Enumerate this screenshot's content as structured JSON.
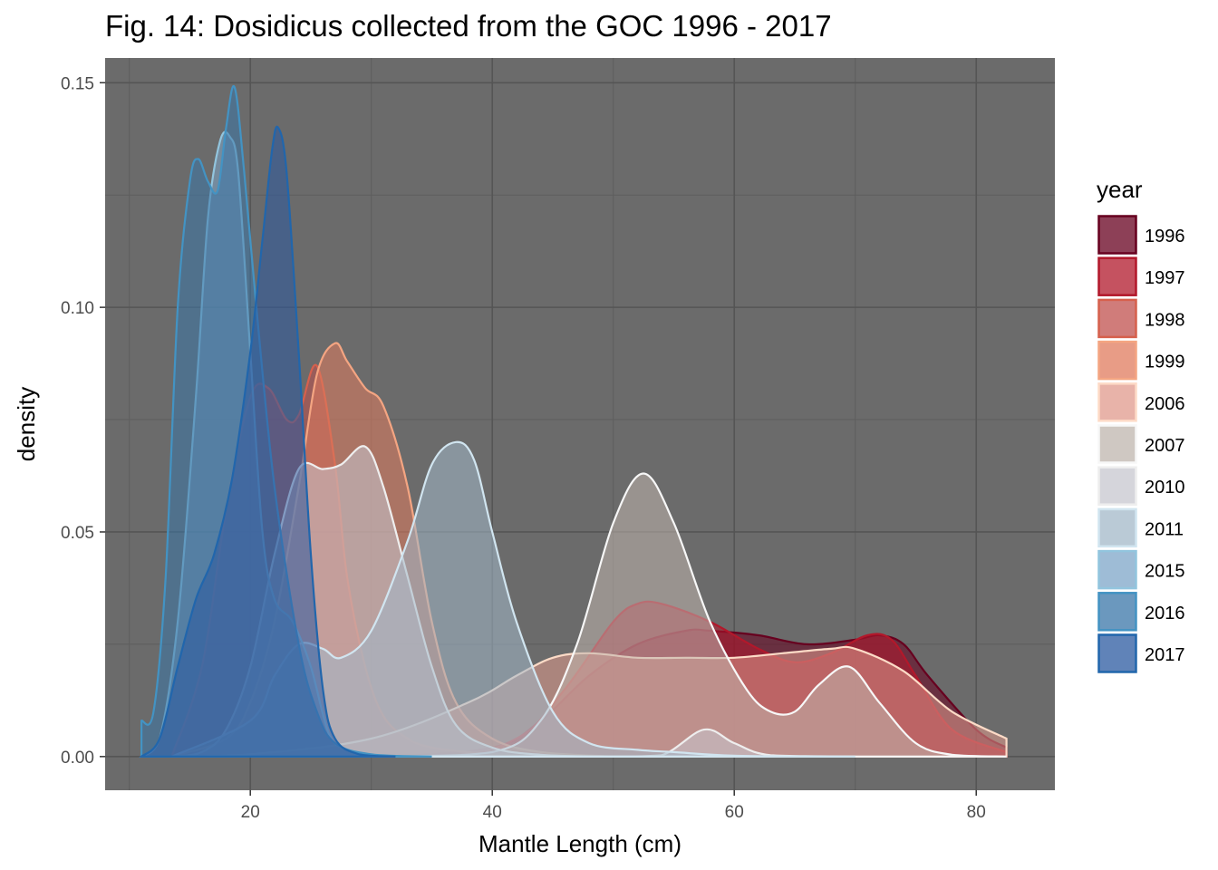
{
  "chart_data": {
    "type": "area",
    "title": "Fig. 14: Dosidicus collected from the GOC 1996 - 2017",
    "xlabel": "Mantle Length (cm)",
    "ylabel": "density",
    "xlim": [
      8.0,
      86.5
    ],
    "ylim": [
      -0.0075,
      0.1555
    ],
    "x_ticks": [
      20,
      40,
      60,
      80
    ],
    "x_tick_labels": [
      "20",
      "40",
      "60",
      "80"
    ],
    "y_ticks": [
      0.0,
      0.05,
      0.1,
      0.15
    ],
    "y_tick_labels": [
      "0.00",
      "0.05",
      "0.10",
      "0.15"
    ],
    "grid": true,
    "panel_background": "#6b6b6b",
    "legend_title": "year",
    "legend_position": "right",
    "series": [
      {
        "name": "1996",
        "color": "#67001f",
        "fill": "#67001f",
        "x": [
          13.5,
          30,
          40,
          44,
          48,
          52,
          56,
          58,
          62,
          66,
          70,
          72,
          74,
          76,
          80,
          82.5
        ],
        "y": [
          0.0,
          0.0,
          0.002,
          0.008,
          0.018,
          0.025,
          0.028,
          0.028,
          0.027,
          0.025,
          0.026,
          0.027,
          0.025,
          0.018,
          0.006,
          0.002
        ]
      },
      {
        "name": "1997",
        "color": "#b2182b",
        "fill": "#b2182b",
        "x": [
          13.5,
          35,
          42,
          46,
          50,
          52,
          54,
          58,
          62,
          65,
          68,
          71,
          73,
          75,
          78,
          82.5
        ],
        "y": [
          0.0,
          0.0,
          0.004,
          0.015,
          0.03,
          0.034,
          0.034,
          0.03,
          0.024,
          0.021,
          0.023,
          0.027,
          0.026,
          0.018,
          0.006,
          0.001
        ]
      },
      {
        "name": "1998",
        "color": "#d6604d",
        "fill": "#c0504d",
        "x": [
          13.5,
          16,
          18,
          20,
          21.5,
          23,
          24,
          25.5,
          27,
          28,
          29.5,
          31,
          33,
          35,
          38,
          42,
          50
        ],
        "y": [
          0.0,
          0.02,
          0.055,
          0.08,
          0.082,
          0.075,
          0.076,
          0.087,
          0.065,
          0.04,
          0.02,
          0.009,
          0.004,
          0.002,
          0.001,
          0.0003,
          0.0
        ]
      },
      {
        "name": "1999",
        "color": "#f4a582",
        "fill": "#e07b5e",
        "x": [
          13.5,
          18,
          20,
          22,
          24,
          25.5,
          27,
          28,
          29.5,
          31,
          33,
          35,
          37,
          40,
          44,
          50
        ],
        "y": [
          0.0,
          0.004,
          0.012,
          0.03,
          0.06,
          0.085,
          0.092,
          0.088,
          0.082,
          0.078,
          0.06,
          0.03,
          0.012,
          0.004,
          0.001,
          0.0
        ]
      },
      {
        "name": "2006",
        "color": "#fddbc7",
        "fill": "#e09a8c",
        "x": [
          13.5,
          20,
          30,
          38,
          42,
          45,
          48,
          52,
          56,
          60,
          64,
          68,
          70,
          74,
          78,
          82.5
        ],
        "y": [
          0.0,
          0.0005,
          0.004,
          0.012,
          0.018,
          0.022,
          0.023,
          0.022,
          0.022,
          0.022,
          0.023,
          0.024,
          0.024,
          0.019,
          0.01,
          0.004
        ]
      },
      {
        "name": "2007",
        "color": "#f7f7f7",
        "fill": "#bfb5ad",
        "x": [
          13.5,
          30,
          40,
          44,
          47,
          50,
          52.5,
          55,
          58,
          61,
          63,
          65,
          67,
          69.5,
          72,
          75,
          78,
          82.5
        ],
        "y": [
          0.0,
          0.0,
          0.001,
          0.008,
          0.025,
          0.052,
          0.063,
          0.052,
          0.03,
          0.015,
          0.01,
          0.01,
          0.016,
          0.02,
          0.012,
          0.003,
          0.0004,
          0.0
        ]
      },
      {
        "name": "2010",
        "color": "#eeeeee",
        "fill": "#c7c7cf",
        "x": [
          13.5,
          16,
          18,
          20,
          22,
          24,
          26,
          27.5,
          29.5,
          31,
          33,
          35,
          37,
          40,
          44,
          50,
          54,
          57.5,
          60,
          63,
          70
        ],
        "y": [
          0.0,
          0.001,
          0.006,
          0.02,
          0.045,
          0.064,
          0.064,
          0.065,
          0.069,
          0.06,
          0.04,
          0.02,
          0.007,
          0.002,
          0.0004,
          0.0,
          0.0003,
          0.006,
          0.003,
          0.0003,
          0.0
        ]
      },
      {
        "name": "2011",
        "color": "#d1e5f0",
        "fill": "#a3b8c8",
        "x": [
          13.5,
          20,
          22,
          24,
          26,
          27.5,
          30,
          33,
          35,
          37,
          38.5,
          40,
          42,
          45,
          48,
          52,
          55,
          60,
          70
        ],
        "y": [
          0.0,
          0.008,
          0.018,
          0.025,
          0.024,
          0.022,
          0.028,
          0.048,
          0.065,
          0.07,
          0.066,
          0.05,
          0.03,
          0.01,
          0.003,
          0.0015,
          0.001,
          0.0002,
          0.0
        ]
      },
      {
        "name": "2015",
        "color": "#92c5de",
        "fill": "#7ea6c8",
        "x": [
          11,
          12.5,
          14,
          15.5,
          16.5,
          17.5,
          18.3,
          19,
          20,
          21,
          22,
          23.5,
          25,
          26.5,
          28,
          30,
          35
        ],
        "y": [
          0.0,
          0.004,
          0.03,
          0.08,
          0.12,
          0.137,
          0.138,
          0.13,
          0.09,
          0.05,
          0.035,
          0.03,
          0.02,
          0.005,
          0.0015,
          0.0003,
          0.0
        ]
      },
      {
        "name": "2016",
        "color": "#4393c3",
        "fill": "#3a76a8",
        "x": [
          11,
          12,
          13,
          14,
          15,
          15.7,
          16.5,
          17.3,
          18,
          18.7,
          19.5,
          20.5,
          22,
          24,
          25.5,
          27,
          30,
          35
        ],
        "y": [
          0.008,
          0.01,
          0.04,
          0.1,
          0.128,
          0.133,
          0.128,
          0.126,
          0.14,
          0.149,
          0.13,
          0.1,
          0.06,
          0.025,
          0.01,
          0.003,
          0.0005,
          0.0
        ]
      },
      {
        "name": "2017",
        "color": "#2166ac",
        "fill": "#2b5aa0",
        "x": [
          11,
          12.5,
          14,
          15.5,
          17,
          18.5,
          20,
          21,
          21.8,
          22.3,
          23,
          24,
          25,
          26,
          27,
          29,
          32
        ],
        "y": [
          0.0,
          0.004,
          0.02,
          0.035,
          0.045,
          0.062,
          0.09,
          0.115,
          0.135,
          0.14,
          0.13,
          0.09,
          0.045,
          0.015,
          0.004,
          0.0005,
          0.0
        ]
      }
    ]
  }
}
